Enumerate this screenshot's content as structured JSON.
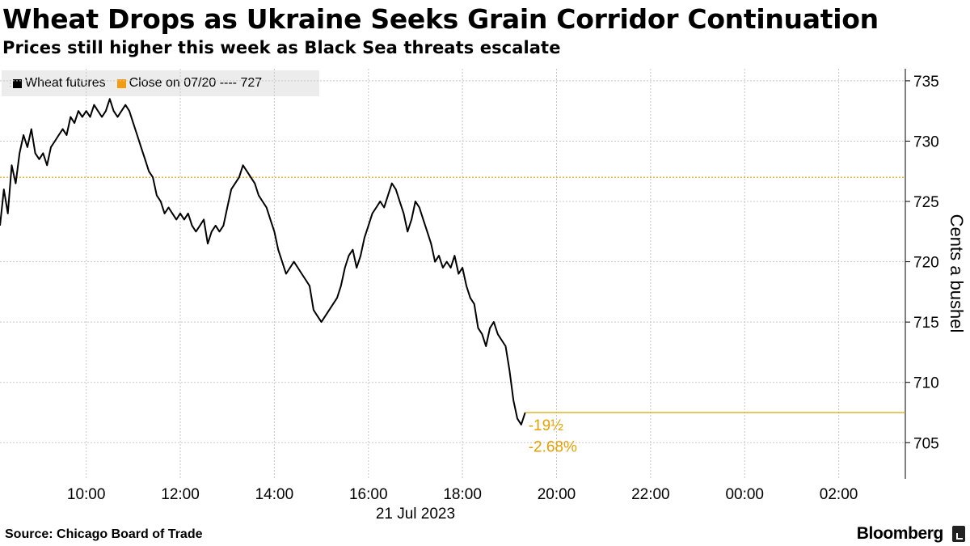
{
  "chart_data": {
    "type": "line",
    "title": "Wheat Drops as Ukraine Seeks Grain Corridor Continuation",
    "subtitle": "Prices still higher this week as Black Sea threats escalate",
    "ylabel": "Cents a bushel",
    "xlabel": "21 Jul 2023",
    "ylim": [
      702,
      736
    ],
    "xlim": [
      "08:10",
      "03:25"
    ],
    "yticks": [
      705,
      710,
      715,
      720,
      725,
      730,
      735
    ],
    "xticks": [
      "10:00",
      "12:00",
      "14:00",
      "16:00",
      "18:00",
      "20:00",
      "22:00",
      "00:00",
      "02:00"
    ],
    "grid": true,
    "legend_placement": "top-left",
    "series": [
      {
        "name": "Wheat futures",
        "color": "#000000",
        "points": [
          [
            "08:10",
            723.0
          ],
          [
            "08:15",
            726.0
          ],
          [
            "08:20",
            724.0
          ],
          [
            "08:25",
            728.0
          ],
          [
            "08:30",
            726.5
          ],
          [
            "08:35",
            729.0
          ],
          [
            "08:40",
            730.5
          ],
          [
            "08:45",
            729.5
          ],
          [
            "08:50",
            731.0
          ],
          [
            "08:55",
            729.0
          ],
          [
            "09:00",
            728.5
          ],
          [
            "09:05",
            729.0
          ],
          [
            "09:10",
            728.0
          ],
          [
            "09:15",
            729.5
          ],
          [
            "09:20",
            730.0
          ],
          [
            "09:25",
            730.5
          ],
          [
            "09:30",
            731.0
          ],
          [
            "09:35",
            730.5
          ],
          [
            "09:40",
            732.0
          ],
          [
            "09:45",
            731.5
          ],
          [
            "09:50",
            732.5
          ],
          [
            "09:55",
            732.0
          ],
          [
            "10:00",
            732.5
          ],
          [
            "10:05",
            732.0
          ],
          [
            "10:10",
            733.0
          ],
          [
            "10:15",
            732.5
          ],
          [
            "10:20",
            732.0
          ],
          [
            "10:25",
            732.5
          ],
          [
            "10:30",
            733.5
          ],
          [
            "10:35",
            732.5
          ],
          [
            "10:40",
            732.0
          ],
          [
            "10:45",
            732.5
          ],
          [
            "10:50",
            733.0
          ],
          [
            "10:55",
            732.5
          ],
          [
            "11:00",
            731.5
          ],
          [
            "11:05",
            730.5
          ],
          [
            "11:10",
            729.5
          ],
          [
            "11:15",
            728.5
          ],
          [
            "11:20",
            727.5
          ],
          [
            "11:25",
            727.0
          ],
          [
            "11:30",
            725.5
          ],
          [
            "11:35",
            725.0
          ],
          [
            "11:40",
            724.0
          ],
          [
            "11:45",
            724.5
          ],
          [
            "11:50",
            724.0
          ],
          [
            "11:55",
            723.5
          ],
          [
            "12:00",
            724.0
          ],
          [
            "12:05",
            723.5
          ],
          [
            "12:10",
            724.0
          ],
          [
            "12:15",
            723.0
          ],
          [
            "12:20",
            722.5
          ],
          [
            "12:25",
            723.0
          ],
          [
            "12:30",
            723.5
          ],
          [
            "12:35",
            721.5
          ],
          [
            "12:40",
            722.5
          ],
          [
            "12:45",
            723.0
          ],
          [
            "12:50",
            722.5
          ],
          [
            "12:55",
            723.0
          ],
          [
            "13:00",
            724.5
          ],
          [
            "13:05",
            726.0
          ],
          [
            "13:10",
            726.5
          ],
          [
            "13:15",
            727.0
          ],
          [
            "13:20",
            728.0
          ],
          [
            "13:25",
            727.5
          ],
          [
            "13:30",
            727.0
          ],
          [
            "13:35",
            726.5
          ],
          [
            "13:40",
            725.5
          ],
          [
            "13:45",
            725.0
          ],
          [
            "13:50",
            724.5
          ],
          [
            "13:55",
            723.5
          ],
          [
            "14:00",
            722.5
          ],
          [
            "14:05",
            721.0
          ],
          [
            "14:10",
            720.0
          ],
          [
            "14:15",
            719.0
          ],
          [
            "14:20",
            719.5
          ],
          [
            "14:25",
            720.0
          ],
          [
            "14:30",
            719.5
          ],
          [
            "14:35",
            719.0
          ],
          [
            "14:40",
            718.5
          ],
          [
            "14:45",
            718.0
          ],
          [
            "14:50",
            716.0
          ],
          [
            "14:55",
            715.5
          ],
          [
            "15:00",
            715.0
          ],
          [
            "15:05",
            715.5
          ],
          [
            "15:10",
            716.0
          ],
          [
            "15:15",
            716.5
          ],
          [
            "15:20",
            717.0
          ],
          [
            "15:25",
            718.0
          ],
          [
            "15:30",
            719.5
          ],
          [
            "15:35",
            720.5
          ],
          [
            "15:40",
            721.0
          ],
          [
            "15:45",
            719.5
          ],
          [
            "15:50",
            720.5
          ],
          [
            "15:55",
            722.0
          ],
          [
            "16:00",
            723.0
          ],
          [
            "16:05",
            724.0
          ],
          [
            "16:10",
            724.5
          ],
          [
            "16:15",
            725.0
          ],
          [
            "16:20",
            724.5
          ],
          [
            "16:25",
            725.5
          ],
          [
            "16:30",
            726.5
          ],
          [
            "16:35",
            726.0
          ],
          [
            "16:40",
            725.0
          ],
          [
            "16:45",
            724.0
          ],
          [
            "16:50",
            722.5
          ],
          [
            "16:55",
            723.5
          ],
          [
            "17:00",
            725.0
          ],
          [
            "17:05",
            724.5
          ],
          [
            "17:10",
            723.5
          ],
          [
            "17:15",
            722.5
          ],
          [
            "17:20",
            721.5
          ],
          [
            "17:25",
            720.0
          ],
          [
            "17:30",
            720.5
          ],
          [
            "17:35",
            719.5
          ],
          [
            "17:40",
            720.0
          ],
          [
            "17:45",
            719.5
          ],
          [
            "17:50",
            720.5
          ],
          [
            "17:55",
            719.0
          ],
          [
            "18:00",
            719.5
          ],
          [
            "18:05",
            718.0
          ],
          [
            "18:10",
            717.0
          ],
          [
            "18:15",
            716.5
          ],
          [
            "18:20",
            714.5
          ],
          [
            "18:25",
            714.0
          ],
          [
            "18:30",
            713.0
          ],
          [
            "18:35",
            714.5
          ],
          [
            "18:40",
            715.0
          ],
          [
            "18:45",
            714.0
          ],
          [
            "18:50",
            713.5
          ],
          [
            "18:55",
            713.0
          ],
          [
            "19:00",
            711.0
          ],
          [
            "19:05",
            708.5
          ],
          [
            "19:10",
            707.0
          ],
          [
            "19:15",
            706.5
          ],
          [
            "19:20",
            707.5
          ]
        ]
      },
      {
        "name": "Close on 07/20 ---- 727",
        "color": "#e8a000",
        "value": 727
      }
    ],
    "last_value_line": {
      "value": 707.5,
      "color": "#d9a400"
    },
    "annotations": [
      "-19½",
      "-2.68%"
    ]
  },
  "footer": {
    "source": "Source: Chicago Board of Trade",
    "brand": "Bloomberg"
  }
}
